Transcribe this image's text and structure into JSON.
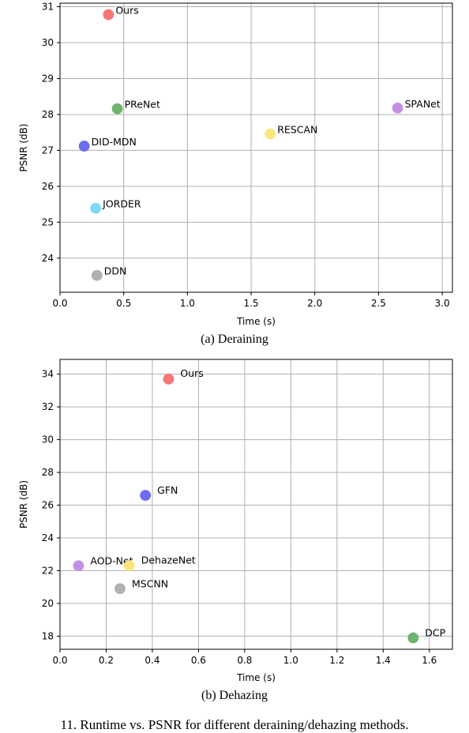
{
  "captions": {
    "sub_a": "(a) Deraining",
    "sub_b": "(b) Dehazing",
    "figure": "11.  Runtime vs. PSNR for different deraining/dehazing methods."
  },
  "chart_data": [
    {
      "type": "scatter",
      "xlabel": "Time (s)",
      "ylabel": "PSNR (dB)",
      "xlim": [
        0.0,
        3.08
      ],
      "ylim": [
        23.05,
        31.1
      ],
      "xticks": [
        0.0,
        0.5,
        1.0,
        1.5,
        2.0,
        2.5,
        3.0
      ],
      "xtick_labels": [
        "0.0",
        "0.5",
        "1.0",
        "1.5",
        "2.0",
        "2.5",
        "3.0"
      ],
      "yticks": [
        24,
        25,
        26,
        27,
        28,
        29,
        30,
        31
      ],
      "ytick_labels": [
        "24",
        "25",
        "26",
        "27",
        "28",
        "29",
        "30",
        "31"
      ],
      "grid": true,
      "points": [
        {
          "label": "Ours",
          "x": 0.38,
          "y": 30.78,
          "color": "#f87676"
        },
        {
          "label": "PReNet",
          "x": 0.45,
          "y": 28.16,
          "color": "#6fb36f"
        },
        {
          "label": "DID-MDN",
          "x": 0.19,
          "y": 27.12,
          "color": "#6d6ded"
        },
        {
          "label": "JORDER",
          "x": 0.28,
          "y": 25.39,
          "color": "#7fd8f5"
        },
        {
          "label": "DDN",
          "x": 0.29,
          "y": 23.52,
          "color": "#b1b1b1"
        },
        {
          "label": "RESCAN",
          "x": 1.65,
          "y": 27.46,
          "color": "#fde57d"
        },
        {
          "label": "SPANet",
          "x": 2.65,
          "y": 28.18,
          "color": "#c490e4"
        }
      ]
    },
    {
      "type": "scatter",
      "xlabel": "Time (s)",
      "ylabel": "PSNR (dB)",
      "xlim": [
        0.0,
        1.7
      ],
      "ylim": [
        17.2,
        34.9
      ],
      "xticks": [
        0.0,
        0.2,
        0.4,
        0.6,
        0.8,
        1.0,
        1.2,
        1.4,
        1.6
      ],
      "xtick_labels": [
        "0.0",
        "0.2",
        "0.4",
        "0.6",
        "0.8",
        "1.0",
        "1.2",
        "1.4",
        "1.6"
      ],
      "yticks": [
        18,
        20,
        22,
        24,
        26,
        28,
        30,
        32,
        34
      ],
      "ytick_labels": [
        "18",
        "20",
        "22",
        "24",
        "26",
        "28",
        "30",
        "32",
        "34"
      ],
      "grid": true,
      "points": [
        {
          "label": "Ours",
          "x": 0.47,
          "y": 33.7,
          "color": "#f87676"
        },
        {
          "label": "GFN",
          "x": 0.37,
          "y": 26.6,
          "color": "#6d6ded"
        },
        {
          "label": "AOD-Net",
          "x": 0.08,
          "y": 22.3,
          "color": "#c490e4"
        },
        {
          "label": "DehazeNet",
          "x": 0.3,
          "y": 22.3,
          "color": "#fde57d"
        },
        {
          "label": "MSCNN",
          "x": 0.26,
          "y": 20.9,
          "color": "#b1b1b1"
        },
        {
          "label": "DCP",
          "x": 1.53,
          "y": 17.9,
          "color": "#6fb36f"
        }
      ]
    }
  ]
}
